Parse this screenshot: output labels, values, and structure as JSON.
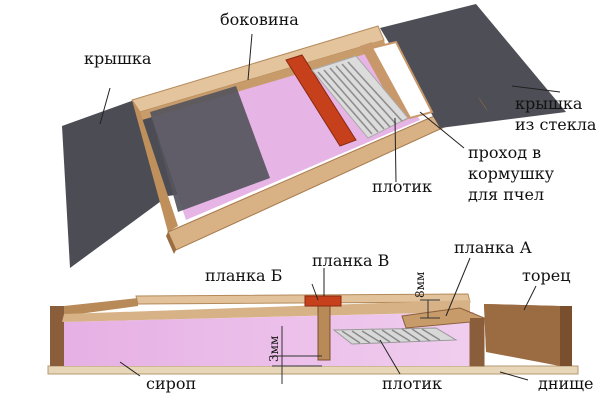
{
  "top_view": {
    "labels": {
      "side_wall": "боковина",
      "lid": "крышка",
      "glass_lid_line1": "крышка",
      "glass_lid_line2": "из стекла",
      "passage_line1": "проход в",
      "passage_line2": "кормушку",
      "passage_line3": "для пчел",
      "float": "плотик"
    }
  },
  "cross_section": {
    "labels": {
      "strip_b": "планка Б",
      "strip_v": "планка В",
      "strip_a": "планка А",
      "end_wall": "торец",
      "gap_top": "8мм",
      "gap_bottom": "3мм",
      "syrup": "сироп",
      "float": "плотик",
      "bottom": "днище"
    }
  },
  "colors": {
    "wood_light": "#e2c29a",
    "wood_mid": "#c79a68",
    "wood_dark": "#8a5e3a",
    "syrup": "#e8b8e8",
    "lid": "#4e4e56",
    "strip_red": "#c6401c",
    "float_slats": "#e6e6e6"
  }
}
